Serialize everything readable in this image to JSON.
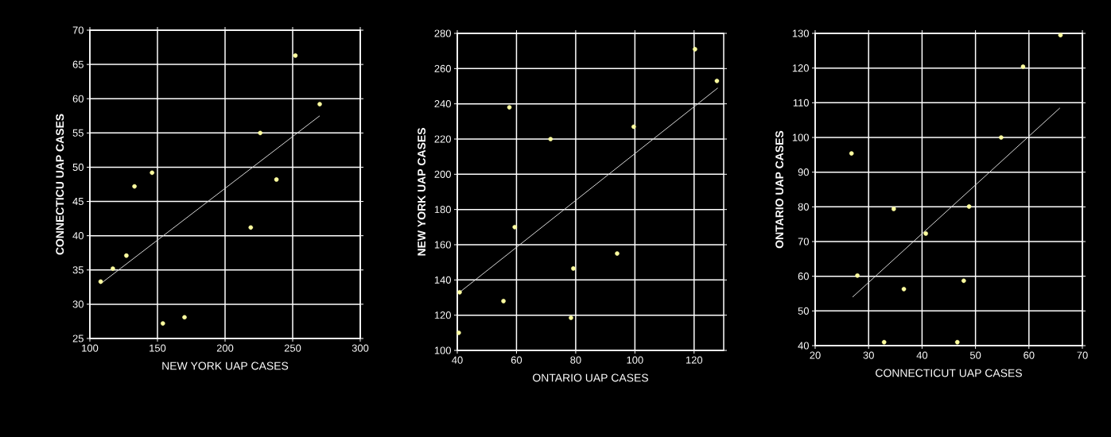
{
  "chart_data": [
    {
      "type": "scatter",
      "xlabel": "NEW YORK UAP CASES",
      "ylabel": "CONNECTICU UAP CASES",
      "xlim": [
        100,
        300
      ],
      "ylim": [
        25,
        70
      ],
      "xticks": [
        100,
        150,
        200,
        250,
        300
      ],
      "yticks": [
        25,
        30,
        35,
        40,
        45,
        50,
        55,
        60,
        65,
        70
      ],
      "grid": true,
      "series": [
        {
          "color": "#ffffa0",
          "x": [
            108,
            117,
            127,
            133,
            146,
            154,
            170,
            219,
            226,
            238,
            252,
            270
          ],
          "values": [
            33.3,
            35.2,
            37.1,
            47.2,
            49.2,
            27.2,
            28.1,
            41.2,
            55.0,
            48.2,
            66.3,
            59.2
          ]
        },
        {
          "type": "line",
          "color": "#d8d8d8",
          "x": [
            108,
            270
          ],
          "values": [
            33.0,
            57.5
          ]
        }
      ]
    },
    {
      "type": "scatter",
      "xlabel": "ONTARIO UAP CASES",
      "ylabel": "NEW YORK UAP CASES",
      "xlim": [
        40,
        130
      ],
      "ylim": [
        100,
        280
      ],
      "xticks": [
        40,
        60,
        80,
        100,
        120
      ],
      "yticks": [
        100,
        120,
        140,
        160,
        180,
        200,
        220,
        240,
        260,
        280
      ],
      "grid": true,
      "series": [
        {
          "color": "#ffffa0",
          "x": [
            40.5,
            40.8,
            55.6,
            57.6,
            59.4,
            71.5,
            78.4,
            79.2,
            94,
            99.6,
            120.3,
            127.7
          ],
          "values": [
            110,
            133,
            128,
            238,
            170,
            220,
            118.5,
            146.5,
            155,
            227,
            271,
            253
          ]
        },
        {
          "type": "line",
          "color": "#d8d8d8",
          "x": [
            40.8,
            128
          ],
          "values": [
            133,
            249
          ]
        }
      ]
    },
    {
      "type": "scatter",
      "xlabel": "CONNECTICUT UAP CASES",
      "ylabel": "ONTARIO UAP CASES",
      "xlim": [
        20,
        70
      ],
      "ylim": [
        40,
        130
      ],
      "xticks": [
        20,
        30,
        40,
        50,
        60,
        70
      ],
      "yticks": [
        40,
        50,
        60,
        70,
        80,
        90,
        100,
        110,
        120,
        130
      ],
      "grid": true,
      "series": [
        {
          "color": "#ffffa0",
          "x": [
            26.8,
            27.9,
            32.9,
            34.7,
            36.6,
            40.7,
            46.6,
            47.8,
            48.8,
            54.8,
            58.9,
            65.9
          ],
          "values": [
            95.4,
            60.2,
            41,
            79.4,
            56.3,
            72.3,
            41,
            58.7,
            80.1,
            100,
            120.4,
            129.5
          ]
        },
        {
          "type": "line",
          "color": "#d8d8d8",
          "x": [
            27,
            65.8
          ],
          "values": [
            54,
            108.5
          ]
        }
      ]
    }
  ]
}
